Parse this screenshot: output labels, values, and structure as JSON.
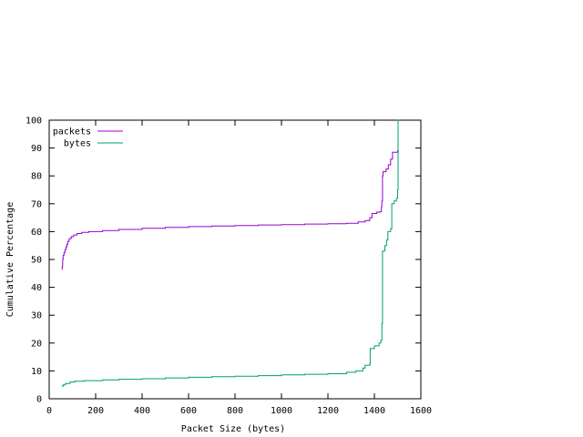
{
  "chart_data": {
    "type": "line",
    "title": "",
    "xlabel": "Packet Size (bytes)",
    "ylabel": "Cumulative Percentage",
    "xlim": [
      0,
      1600
    ],
    "ylim": [
      0,
      100
    ],
    "x_ticks": [
      0,
      200,
      400,
      600,
      800,
      1000,
      1200,
      1400,
      1600
    ],
    "y_ticks": [
      0,
      10,
      20,
      30,
      40,
      50,
      60,
      70,
      80,
      90,
      100
    ],
    "x_tick_labels": [
      "0",
      "200",
      "400",
      "600",
      "800",
      "1000",
      "1200",
      "1400",
      "1600"
    ],
    "y_tick_labels": [
      "0",
      "10",
      "20",
      "30",
      "40",
      "50",
      "60",
      "70",
      "80",
      "90",
      "100"
    ],
    "grid": false,
    "legend_position": "top-left",
    "series": [
      {
        "name": "packets",
        "color": "#9400d3",
        "points": [
          [
            54,
            46.5
          ],
          [
            56,
            47.5
          ],
          [
            58,
            50
          ],
          [
            60,
            51.5
          ],
          [
            64,
            52.5
          ],
          [
            68,
            53.5
          ],
          [
            72,
            54.5
          ],
          [
            76,
            55.5
          ],
          [
            80,
            56.5
          ],
          [
            86,
            57.5
          ],
          [
            95,
            58.2
          ],
          [
            105,
            58.8
          ],
          [
            120,
            59.3
          ],
          [
            140,
            59.7
          ],
          [
            170,
            60.0
          ],
          [
            230,
            60.4
          ],
          [
            300,
            60.8
          ],
          [
            400,
            61.2
          ],
          [
            500,
            61.5
          ],
          [
            600,
            61.8
          ],
          [
            700,
            62.0
          ],
          [
            800,
            62.2
          ],
          [
            900,
            62.4
          ],
          [
            1000,
            62.5
          ],
          [
            1100,
            62.7
          ],
          [
            1200,
            62.8
          ],
          [
            1280,
            63.0
          ],
          [
            1330,
            63.5
          ],
          [
            1360,
            64.0
          ],
          [
            1380,
            65.0
          ],
          [
            1390,
            66.5
          ],
          [
            1410,
            67.0
          ],
          [
            1425,
            67.2
          ],
          [
            1430,
            69.0
          ],
          [
            1432,
            71.0
          ],
          [
            1435,
            80.0
          ],
          [
            1437,
            81.5
          ],
          [
            1450,
            82.5
          ],
          [
            1460,
            84.0
          ],
          [
            1470,
            86.0
          ],
          [
            1478,
            88.5
          ],
          [
            1500,
            89.0
          ],
          [
            1505,
            89.0
          ]
        ]
      },
      {
        "name": "bytes",
        "color": "#009e73",
        "points": [
          [
            54,
            4.5
          ],
          [
            60,
            5.0
          ],
          [
            70,
            5.5
          ],
          [
            90,
            6.0
          ],
          [
            110,
            6.3
          ],
          [
            150,
            6.5
          ],
          [
            230,
            6.8
          ],
          [
            300,
            7.0
          ],
          [
            400,
            7.2
          ],
          [
            500,
            7.5
          ],
          [
            600,
            7.7
          ],
          [
            700,
            7.9
          ],
          [
            800,
            8.1
          ],
          [
            900,
            8.3
          ],
          [
            1000,
            8.6
          ],
          [
            1100,
            8.8
          ],
          [
            1200,
            9.0
          ],
          [
            1280,
            9.5
          ],
          [
            1320,
            10.0
          ],
          [
            1350,
            11.0
          ],
          [
            1360,
            12.0
          ],
          [
            1380,
            12.5
          ],
          [
            1382,
            18.0
          ],
          [
            1400,
            19.0
          ],
          [
            1420,
            20.0
          ],
          [
            1428,
            21.0
          ],
          [
            1432,
            27.0
          ],
          [
            1435,
            53.0
          ],
          [
            1445,
            55.0
          ],
          [
            1452,
            57.0
          ],
          [
            1458,
            60.0
          ],
          [
            1470,
            61.0
          ],
          [
            1475,
            70.0
          ],
          [
            1485,
            71.0
          ],
          [
            1495,
            72.0
          ],
          [
            1500,
            75.0
          ],
          [
            1502,
            100.0
          ],
          [
            1505,
            100.0
          ]
        ]
      }
    ]
  }
}
